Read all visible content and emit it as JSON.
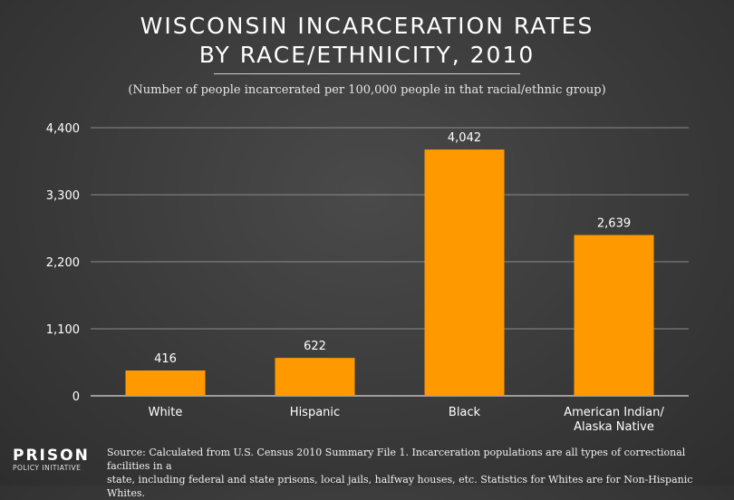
{
  "header": {
    "title_line_1": "WISCONSIN INCARCERATION RATES",
    "title_line_2": "BY RACE/ETHNICITY, 2010",
    "subtitle": "(Number of people incarcerated per 100,000 people in that racial/ethnic group)"
  },
  "chart_data": {
    "type": "bar",
    "categories": [
      [
        "White"
      ],
      [
        "Hispanic"
      ],
      [
        "Black"
      ],
      [
        "American Indian/",
        "Alaska Native"
      ]
    ],
    "values": [
      416,
      622,
      4042,
      2639
    ],
    "value_labels": [
      "416",
      "622",
      "4,042",
      "2,639"
    ],
    "yticks": [
      0,
      1100,
      2200,
      3300,
      4400
    ],
    "ytick_labels": [
      "0",
      "1,100",
      "2,200",
      "3,300",
      "4,400"
    ],
    "ylim": [
      0,
      4400
    ],
    "grid": true,
    "bar_color": "#ff9900"
  },
  "footer": {
    "source_line_1": "Source: Calculated from U.S. Census 2010 Summary File 1. Incarceration populations are all types of correctional facilities in a",
    "source_line_2": "state, including federal and state prisons, local jails, halfway houses, etc. Statistics for Whites are for Non-Hispanic Whites.",
    "logo_main": "PRISON",
    "logo_sub": "POLICY INITIATIVE"
  }
}
